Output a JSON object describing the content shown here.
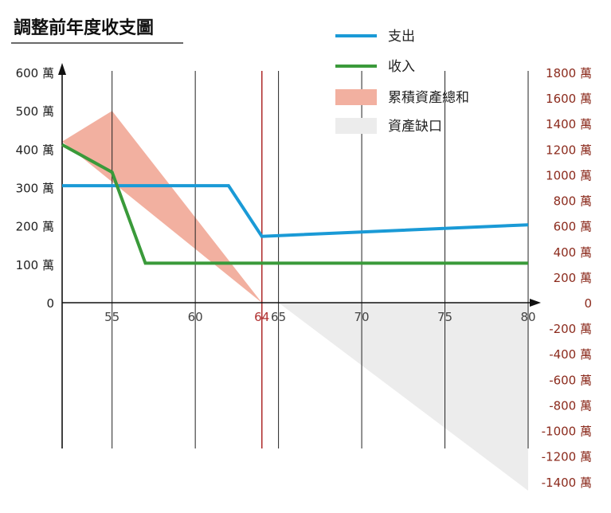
{
  "chart_data": {
    "type": "line",
    "title": "調整前年度收支圖",
    "x_ticks": [
      {
        "value": 55,
        "label": "55"
      },
      {
        "value": 60,
        "label": "60"
      },
      {
        "value": 64,
        "label": "64",
        "highlight": true
      },
      {
        "value": 65,
        "label": "65"
      },
      {
        "value": 70,
        "label": "70"
      },
      {
        "value": 75,
        "label": "75"
      },
      {
        "value": 80,
        "label": "80"
      }
    ],
    "xlim": [
      52,
      80
    ],
    "y_left": {
      "ylim": [
        0,
        600
      ],
      "ticks": [
        {
          "value": 0,
          "label": "0"
        },
        {
          "value": 100,
          "label": "100 萬"
        },
        {
          "value": 200,
          "label": "200 萬"
        },
        {
          "value": 300,
          "label": "300 萬"
        },
        {
          "value": 400,
          "label": "400 萬"
        },
        {
          "value": 500,
          "label": "500 萬"
        },
        {
          "value": 600,
          "label": "600 萬"
        }
      ]
    },
    "y_right": {
      "ylim": [
        -1400,
        1800
      ],
      "ticks": [
        {
          "value": 1800,
          "label": "1800 萬"
        },
        {
          "value": 1600,
          "label": "1600 萬"
        },
        {
          "value": 1400,
          "label": "1400 萬"
        },
        {
          "value": 1200,
          "label": "1200 萬"
        },
        {
          "value": 1000,
          "label": "1000 萬"
        },
        {
          "value": 800,
          "label": "800 萬"
        },
        {
          "value": 600,
          "label": "600 萬"
        },
        {
          "value": 400,
          "label": "400 萬"
        },
        {
          "value": 200,
          "label": "200 萬"
        },
        {
          "value": 0,
          "label": "0"
        },
        {
          "value": -200,
          "label": "-200 萬"
        },
        {
          "value": -400,
          "label": "-400 萬"
        },
        {
          "value": -600,
          "label": "-600 萬"
        },
        {
          "value": -800,
          "label": "-800 萬"
        },
        {
          "value": -1000,
          "label": "-1000 萬"
        },
        {
          "value": -1200,
          "label": "-1200 萬"
        },
        {
          "value": -1400,
          "label": "-1400 萬"
        }
      ]
    },
    "series": [
      {
        "name": "支出",
        "kind": "line",
        "axis": "left",
        "color": "#1a9ad6",
        "points": [
          [
            52,
            305
          ],
          [
            62,
            305
          ],
          [
            64,
            173
          ],
          [
            80,
            203
          ]
        ]
      },
      {
        "name": "收入",
        "kind": "line",
        "axis": "left",
        "color": "#3a9a3a",
        "points": [
          [
            52,
            412
          ],
          [
            55,
            340
          ],
          [
            57,
            103
          ],
          [
            80,
            103
          ]
        ]
      },
      {
        "name": "累積資產總和",
        "kind": "area",
        "axis": "right",
        "color": "#f2b0a0",
        "points": [
          [
            52,
            1260
          ],
          [
            55,
            1500
          ],
          [
            64,
            0
          ]
        ]
      },
      {
        "name": "資產缺口",
        "kind": "area",
        "axis": "right",
        "color": "#ececec",
        "points": [
          [
            65,
            0
          ],
          [
            80,
            0
          ],
          [
            80,
            -1470
          ]
        ]
      }
    ],
    "grid": "vertical",
    "legend": "top-right",
    "colors": {
      "axis": "#111111",
      "highlight": "#b03030",
      "right_axis_text": "#8b2a1c"
    }
  }
}
